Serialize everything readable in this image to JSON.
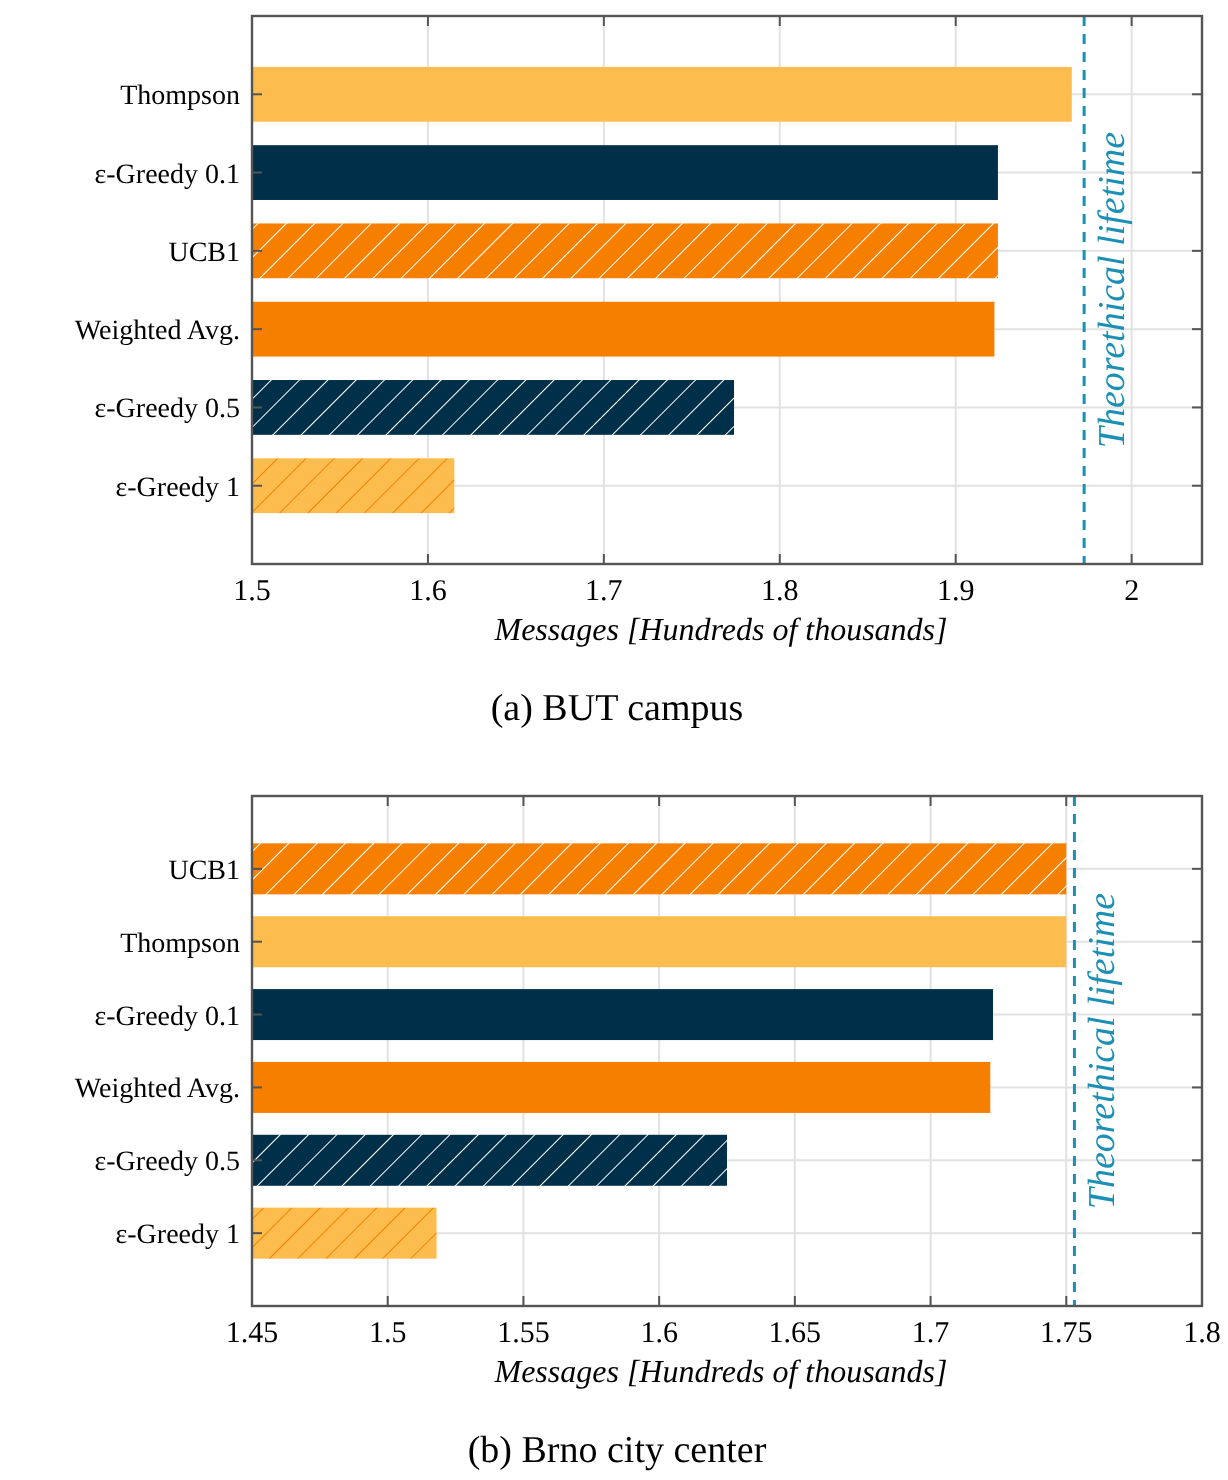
{
  "chart_data": [
    {
      "type": "bar",
      "orientation": "horizontal",
      "stacked": true,
      "title": "(a) BUT campus",
      "xlabel": "Messages [Hundreds of thousands]",
      "categories": [
        "Thompson",
        "ε-Greedy 0.1",
        "UCB1",
        "Weighted Avg.",
        "ε-Greedy 0.5",
        "ε-Greedy 1"
      ],
      "series": [
        {
          "colors": [
            "#fdbd4e",
            "#003049",
            null,
            "#f77f00",
            null,
            null
          ],
          "values": [
            1.966,
            1.924,
            null,
            1.922,
            null,
            null
          ]
        },
        {
          "colors": [
            null,
            null,
            "#f77f00",
            null,
            "#003049",
            "#fdbd4e"
          ],
          "values": [
            null,
            null,
            1.924,
            null,
            1.774,
            1.615
          ]
        }
      ],
      "xlim": [
        1.5,
        2.04
      ],
      "xticks": [
        1.5,
        1.6,
        1.7,
        1.8,
        1.9,
        2
      ],
      "grid": true,
      "ref_lines": [
        {
          "axis": "x",
          "value": 1.973,
          "label": "Theorethical lifetime",
          "color": "#1b8fb5",
          "line_style": "dashed"
        }
      ]
    },
    {
      "type": "bar",
      "orientation": "horizontal",
      "stacked": true,
      "title": "(b) Brno city center",
      "xlabel": "Messages [Hundreds of thousands]",
      "categories": [
        "UCB1",
        "Thompson",
        "ε-Greedy 0.1",
        "Weighted Avg.",
        "ε-Greedy 0.5",
        "ε-Greedy 1"
      ],
      "series": [
        {
          "colors": [
            null,
            "#fdbd4e",
            "#003049",
            "#f77f00",
            null,
            null
          ],
          "values": [
            null,
            1.75,
            1.723,
            1.722,
            null,
            null
          ]
        },
        {
          "colors": [
            "#f77f00",
            null,
            null,
            null,
            "#003049",
            "#fdbd4e"
          ],
          "values": [
            1.75,
            null,
            null,
            null,
            1.625,
            1.518
          ]
        }
      ],
      "xlim": [
        1.45,
        1.8
      ],
      "xticks": [
        1.45,
        1.5,
        1.55,
        1.6,
        1.65,
        1.7,
        1.75,
        1.8
      ],
      "grid": true,
      "ref_lines": [
        {
          "axis": "x",
          "value": 1.753,
          "label": "Theorethical lifetime",
          "color": "#1b8fb5",
          "line_style": "dashed"
        }
      ]
    }
  ]
}
